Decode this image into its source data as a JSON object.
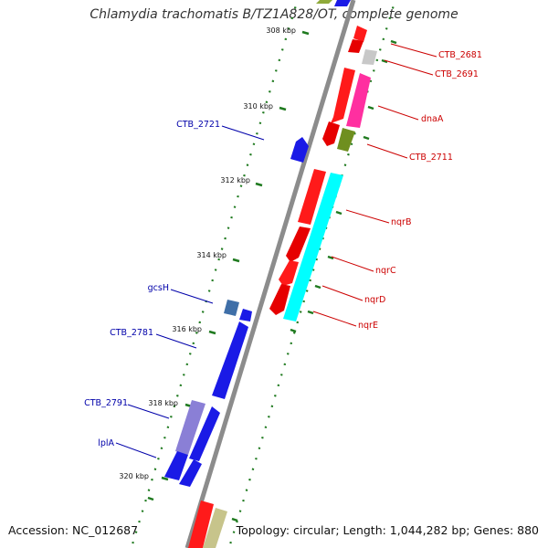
{
  "title": "Chlamydia trachomatis B/TZ1A828/OT, complete genome",
  "footer": {
    "accession": "Accession: NC_012687",
    "summary": "Topology: circular; Length: 1,044,282 bp; Genes: 880"
  },
  "ticks": [
    "308 kbp",
    "310 kbp",
    "312 kbp",
    "314 kbp",
    "316 kbp",
    "318 kbp",
    "320 kbp"
  ],
  "forward_genes": [
    "CTB_2681",
    "CTB_2691",
    "dnaA",
    "CTB_2711",
    "nqrB",
    "nqrC",
    "nqrD",
    "nqrE"
  ],
  "reverse_genes": [
    "CTB_2721",
    "gcsH",
    "CTB_2781",
    "CTB_2791",
    "lplA"
  ],
  "colors": {
    "forward_label": "#cc0000",
    "reverse_label": "#0000aa",
    "backbone": "#8c8c8c",
    "tick": "#1f7a1f"
  }
}
